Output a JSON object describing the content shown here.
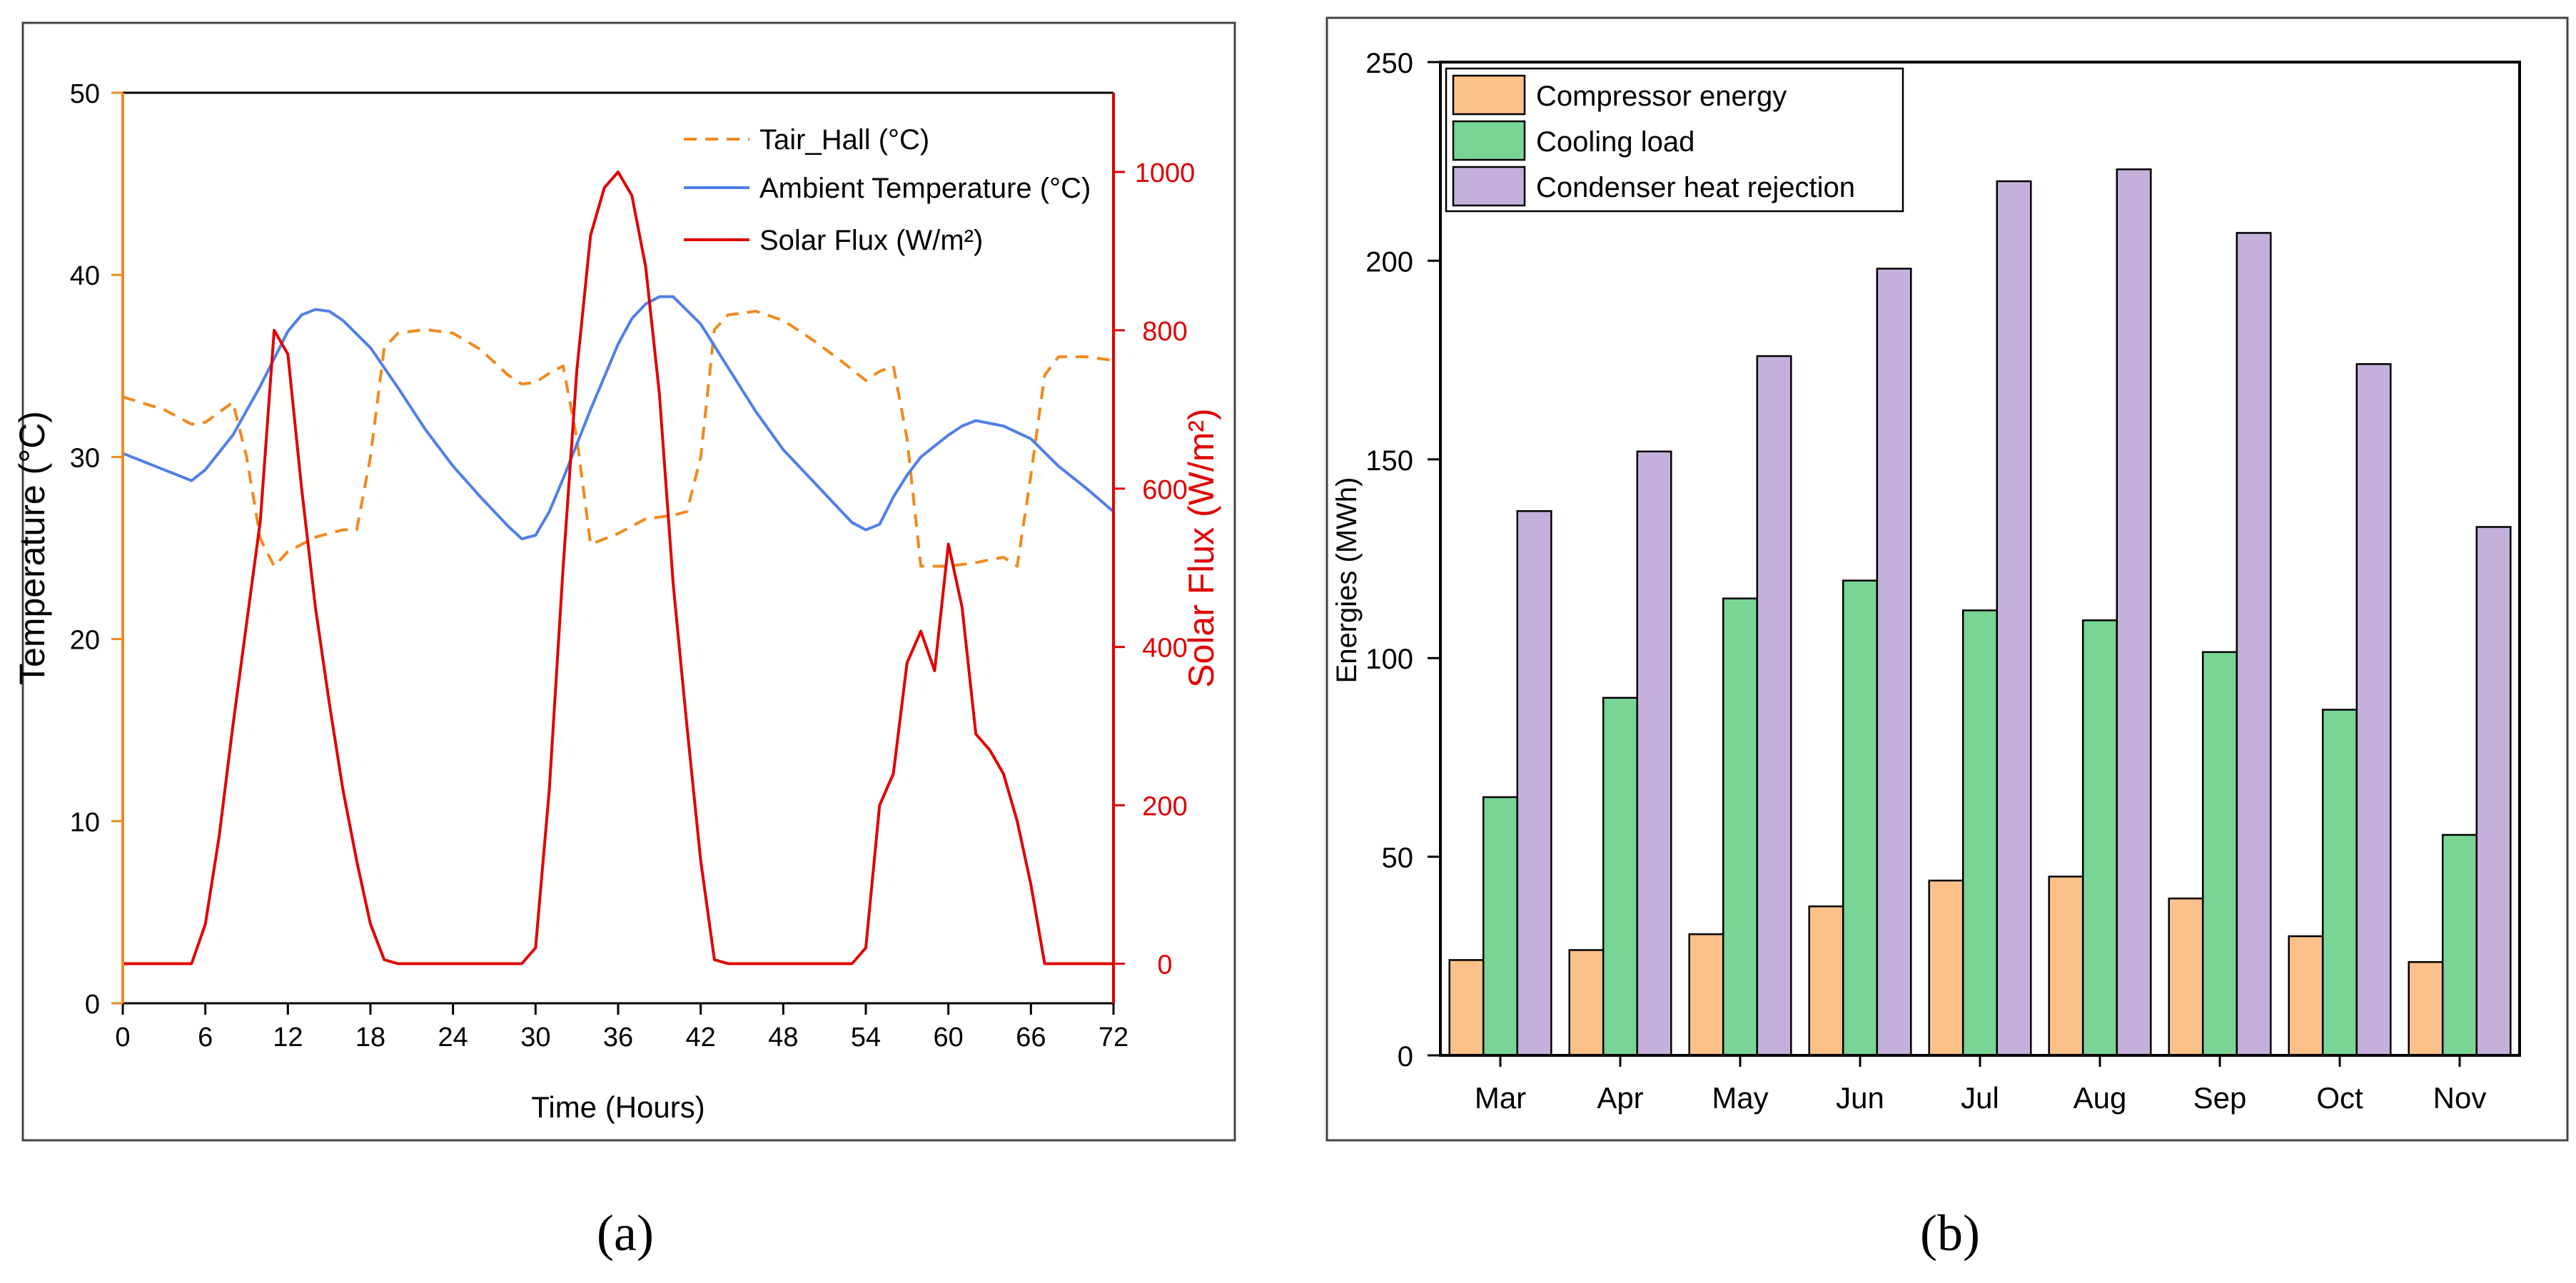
{
  "panel_labels": {
    "a": "(a)",
    "b": "(b)"
  },
  "colors": {
    "tair": "#f0891e",
    "ambient": "#4f7fe8",
    "solar": "#e00000",
    "left_axis": "#f0891e",
    "right_axis": "#e00000",
    "compressor": "#fcc08a",
    "cooling": "#78d596",
    "condenser": "#c5b0dc"
  },
  "chart_data": [
    {
      "type": "line",
      "panel": "a",
      "xlabel": "Time (Hours)",
      "ylabel_left": "Temperature (°C)",
      "ylabel_right": "Solar Flux (W/m²)",
      "xlim": [
        0,
        72
      ],
      "ylim_left": [
        0,
        50
      ],
      "ylim_right": [
        -50,
        1100
      ],
      "x_ticks": [
        0,
        6,
        12,
        18,
        24,
        30,
        36,
        42,
        48,
        54,
        60,
        66,
        72
      ],
      "y_left_ticks": [
        0,
        10,
        20,
        30,
        40,
        50
      ],
      "y_right_ticks": [
        0,
        200,
        400,
        600,
        800,
        1000
      ],
      "legend_position": "top-right",
      "series": [
        {
          "name": "Tair_Hall (°C)",
          "axis": "left",
          "style": "dashed",
          "color_key": "tair",
          "x": [
            0,
            3,
            5,
            6,
            8,
            9,
            10,
            11,
            12,
            13,
            14,
            16,
            17,
            18,
            19,
            20,
            22,
            24,
            26,
            28,
            29,
            30,
            31,
            32,
            33,
            34,
            36,
            38,
            40,
            41,
            42,
            43,
            44,
            46,
            48,
            50,
            52,
            54,
            55,
            56,
            57,
            58,
            59,
            60,
            62,
            64,
            65,
            66,
            67,
            68,
            70,
            72
          ],
          "y": [
            33.3,
            32.6,
            31.8,
            31.9,
            33.0,
            30.0,
            25.5,
            24.0,
            24.8,
            25.2,
            25.6,
            26.0,
            26.0,
            30.0,
            36.0,
            36.8,
            37.0,
            36.8,
            35.9,
            34.5,
            34.0,
            34.1,
            34.6,
            35.0,
            31.0,
            25.2,
            25.8,
            26.6,
            26.8,
            27.0,
            30.0,
            37.0,
            37.8,
            38.0,
            37.5,
            36.5,
            35.4,
            34.2,
            34.7,
            35.0,
            31.0,
            24.0,
            24.0,
            24.0,
            24.2,
            24.5,
            24.0,
            29.0,
            34.5,
            35.5,
            35.5,
            35.3
          ]
        },
        {
          "name": "Ambient Temperature (°C)",
          "axis": "left",
          "style": "solid",
          "color_key": "ambient",
          "x": [
            0,
            3,
            5,
            6,
            8,
            10,
            12,
            13,
            14,
            15,
            16,
            18,
            20,
            22,
            24,
            26,
            28,
            29,
            30,
            31,
            32,
            34,
            36,
            37,
            38,
            39,
            40,
            42,
            44,
            46,
            48,
            50,
            52,
            53,
            54,
            55,
            56,
            57,
            58,
            59,
            60,
            61,
            62,
            64,
            66,
            68,
            70,
            72
          ],
          "y": [
            30.2,
            29.3,
            28.7,
            29.3,
            31.2,
            33.9,
            36.9,
            37.8,
            38.1,
            38.0,
            37.5,
            36.0,
            33.8,
            31.5,
            29.5,
            27.8,
            26.2,
            25.5,
            25.7,
            27.0,
            28.8,
            32.6,
            36.2,
            37.6,
            38.4,
            38.8,
            38.8,
            37.3,
            34.9,
            32.5,
            30.4,
            28.8,
            27.2,
            26.4,
            26.0,
            26.3,
            27.8,
            29.0,
            30.0,
            30.6,
            31.2,
            31.7,
            32.0,
            31.7,
            31.0,
            29.5,
            28.3,
            27.0
          ]
        },
        {
          "name": "Solar Flux (W/m²)",
          "axis": "right",
          "style": "solid",
          "color_key": "solar",
          "x": [
            0,
            5,
            6,
            7,
            8,
            9,
            10,
            11,
            12,
            13,
            14,
            15,
            16,
            17,
            18,
            19,
            20,
            24,
            29,
            30,
            31,
            32,
            33,
            34,
            35,
            36,
            37,
            38,
            39,
            40,
            41,
            42,
            43,
            44,
            48,
            53,
            54,
            55,
            56,
            57,
            58,
            59,
            60,
            61,
            62,
            63,
            64,
            65,
            66,
            67,
            68,
            72
          ],
          "y": [
            0,
            0,
            50,
            160,
            300,
            430,
            560,
            800,
            770,
            600,
            450,
            330,
            220,
            130,
            50,
            5,
            0,
            0,
            0,
            20,
            220,
            500,
            750,
            920,
            980,
            1000,
            970,
            880,
            720,
            480,
            300,
            130,
            5,
            0,
            0,
            0,
            20,
            200,
            240,
            380,
            420,
            370,
            530,
            450,
            290,
            270,
            240,
            180,
            100,
            0,
            0,
            0
          ]
        }
      ]
    },
    {
      "type": "bar",
      "panel": "b",
      "ylabel": "Energies (MWh)",
      "xlabel": "",
      "ylim": [
        0,
        250
      ],
      "y_ticks": [
        0,
        50,
        100,
        150,
        200,
        250
      ],
      "categories": [
        "Mar",
        "Apr",
        "May",
        "Jun",
        "Jul",
        "Aug",
        "Sep",
        "Oct",
        "Nov"
      ],
      "legend_position": "top-left",
      "series": [
        {
          "name": "Compressor energy",
          "color_key": "compressor",
          "values": [
            24,
            26.5,
            30.5,
            37.5,
            44,
            45,
            39.5,
            30,
            23.5
          ]
        },
        {
          "name": "Cooling load",
          "color_key": "cooling",
          "values": [
            65,
            90,
            115,
            119.5,
            112,
            109.5,
            101.5,
            87,
            55.5
          ]
        },
        {
          "name": "Condenser heat rejection",
          "color_key": "condenser",
          "values": [
            137,
            152,
            176,
            198,
            220,
            223,
            207,
            174,
            133
          ]
        }
      ]
    }
  ]
}
